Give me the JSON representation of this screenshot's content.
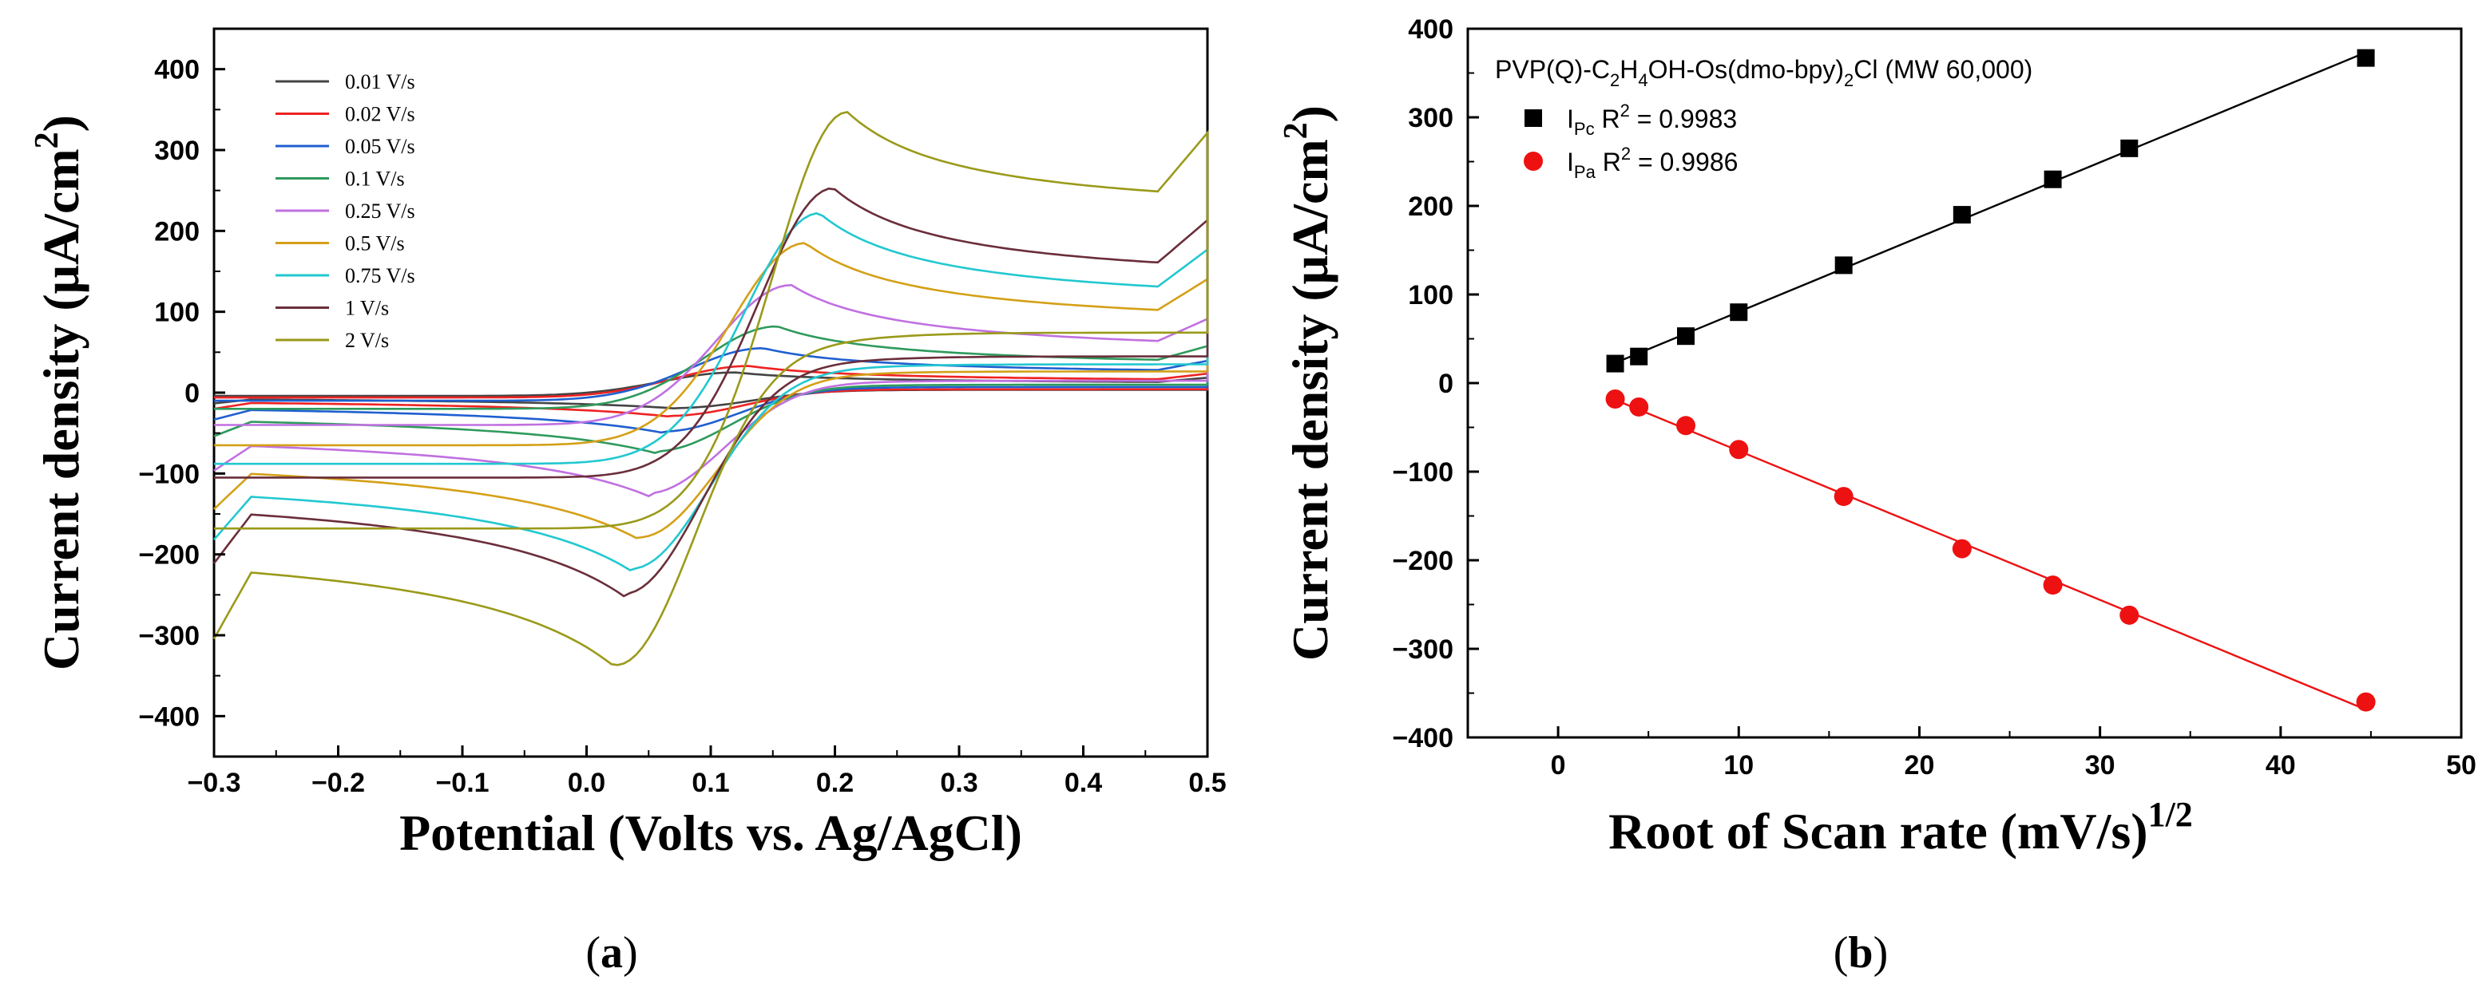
{
  "chart_data": [
    {
      "id": "a",
      "type": "line",
      "caption_letter": "a",
      "xlabel": "Potential (Volts vs. Ag/AgCl)",
      "ylabel": "Current density (μA/cm",
      "ylabel_sup": "2",
      "ylabel_close": ")",
      "xlim": [
        -0.3,
        0.5
      ],
      "ylim": [
        -450,
        450
      ],
      "xticks": [
        -0.3,
        -0.2,
        -0.1,
        0.0,
        0.1,
        0.2,
        0.3,
        0.4,
        0.5
      ],
      "xtick_labels": [
        "−0.3",
        "−0.2",
        "−0.1",
        "0.0",
        "0.1",
        "0.2",
        "0.3",
        "0.4",
        "0.5"
      ],
      "yticks": [
        -400,
        -300,
        -200,
        -100,
        0,
        100,
        200,
        300,
        400
      ],
      "ytick_labels": [
        "−400",
        "−300",
        "−200",
        "−100",
        "0",
        "100",
        "200",
        "300",
        "400"
      ],
      "legend_position": "top-left",
      "series": [
        {
          "name": "0.01 V/s",
          "color": "#444444",
          "anodic_peak": 25,
          "cathodic_peak": -20,
          "forward_end": 10,
          "reverse_start": -4
        },
        {
          "name": "0.02 V/s",
          "color": "#ee2222",
          "anodic_peak": 33,
          "cathodic_peak": -30,
          "forward_end": 12,
          "reverse_start": -6
        },
        {
          "name": "0.05 V/s",
          "color": "#1f5fd0",
          "anodic_peak": 55,
          "cathodic_peak": -50,
          "forward_end": 20,
          "reverse_start": -10
        },
        {
          "name": "0.1 V/s",
          "color": "#2e9a5c",
          "anodic_peak": 82,
          "cathodic_peak": -75,
          "forward_end": 28,
          "reverse_start": -20
        },
        {
          "name": "0.25 V/s",
          "color": "#c070e0",
          "anodic_peak": 133,
          "cathodic_peak": -128,
          "forward_end": 42,
          "reverse_start": -40
        },
        {
          "name": "0.5 V/s",
          "color": "#d4a017",
          "anodic_peak": 185,
          "cathodic_peak": -183,
          "forward_end": 75,
          "reverse_start": -65
        },
        {
          "name": "0.75 V/s",
          "color": "#22c8d0",
          "anodic_peak": 222,
          "cathodic_peak": -222,
          "forward_end": 100,
          "reverse_start": -88
        },
        {
          "name": "1 V/s",
          "color": "#6a2e3a",
          "anodic_peak": 253,
          "cathodic_peak": -253,
          "forward_end": 128,
          "reverse_start": -105
        },
        {
          "name": "2 V/s",
          "color": "#9a9a1a",
          "anodic_peak": 347,
          "cathodic_peak": -342,
          "forward_end": 212,
          "reverse_start": -168
        }
      ]
    },
    {
      "id": "b",
      "type": "scatter",
      "caption_letter": "b",
      "title": "PVP(Q)-C2H4OH-Os(dmo-bpy)2Cl (MW 60,000)",
      "title_parts": {
        "p1": "PVP(Q)-C",
        "s1": "2",
        "p2": "H",
        "s2": "4",
        "p3": "OH-Os(dmo-bpy)",
        "s3": "2",
        "p4": "Cl (MW 60,000)"
      },
      "xlabel": "Root of Scan rate (mV/s)",
      "xlabel_sup": "1/2",
      "ylabel": "Current density (μA/cm",
      "ylabel_sup": "2",
      "ylabel_close": ")",
      "xlim": [
        -5,
        50
      ],
      "ylim": [
        -400,
        400
      ],
      "xticks": [
        0,
        10,
        20,
        30,
        40,
        50
      ],
      "xtick_labels": [
        "0",
        "10",
        "20",
        "30",
        "40",
        "50"
      ],
      "yticks": [
        -400,
        -300,
        -200,
        -100,
        0,
        100,
        200,
        300,
        400
      ],
      "ytick_labels": [
        "−400",
        "−300",
        "−200",
        "−100",
        "0",
        "100",
        "200",
        "300",
        "400"
      ],
      "legend_position": "top-left",
      "series": [
        {
          "name": "IPc R2 = 0.9983",
          "label_main": "I",
          "label_sub": "Pc",
          "label_rest": " R",
          "label_sup": "2",
          "label_value": " = 0.9983",
          "marker": "square",
          "color": "#000000",
          "x": [
            3.16,
            4.47,
            7.07,
            10.0,
            15.81,
            22.36,
            27.39,
            31.62,
            44.72
          ],
          "y": [
            22,
            30,
            53,
            80,
            133,
            190,
            230,
            265,
            367
          ]
        },
        {
          "name": "IPa R2 = 0.9986",
          "label_main": "I",
          "label_sub": "Pa",
          "label_rest": " R",
          "label_sup": "2",
          "label_value": " = 0.9986",
          "marker": "circle",
          "color": "#ee1111",
          "x": [
            3.16,
            4.47,
            7.07,
            10.0,
            15.81,
            22.36,
            27.39,
            31.62,
            44.72
          ],
          "y": [
            -18,
            -27,
            -48,
            -75,
            -128,
            -187,
            -228,
            -262,
            -360
          ]
        }
      ]
    }
  ]
}
